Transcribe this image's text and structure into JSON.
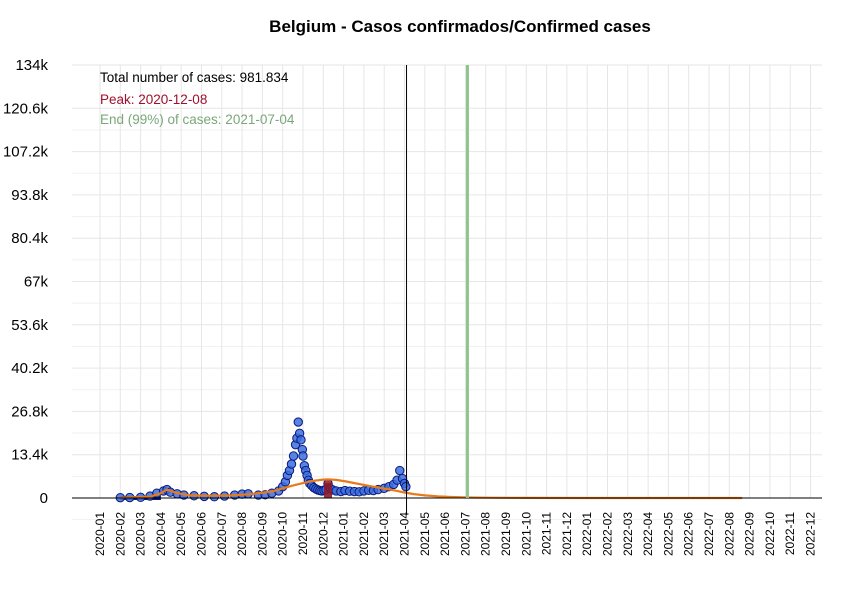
{
  "chart_data": {
    "type": "scatter",
    "title": "Belgium - Casos confirmados/Confirmed cases",
    "xlabel": "",
    "ylabel": "",
    "ylim": [
      0,
      134000
    ],
    "y_ticks": [
      "0",
      "13.4k",
      "26.8k",
      "40.2k",
      "53.6k",
      "67k",
      "80.4k",
      "93.8k",
      "107.2k",
      "120.6k",
      "134k"
    ],
    "x_ticks": [
      "2020-01",
      "2020-02",
      "2020-03",
      "2020-04",
      "2020-05",
      "2020-06",
      "2020-07",
      "2020-08",
      "2020-09",
      "2020-10",
      "2020-11",
      "2020-12",
      "2021-01",
      "2021-02",
      "2021-03",
      "2021-04",
      "2021-05",
      "2021-06",
      "2021-07",
      "2021-08",
      "2021-09",
      "2021-10",
      "2021-11",
      "2021-12",
      "2022-01",
      "2022-02",
      "2022-03",
      "2022-04",
      "2022-05",
      "2022-06",
      "2022-07",
      "2022-08",
      "2022-09",
      "2022-10",
      "2022-11",
      "2022-12"
    ],
    "annotations": {
      "total": "Total number of cases: 981.834",
      "peak": "Peak: 2020-12-08",
      "end": "End (99%) of cases: 2021-07-04"
    },
    "series": [
      {
        "kind": "observed-points",
        "x": [
          "2020-02-01",
          "2020-02-15",
          "2020-03-01",
          "2020-03-15",
          "2020-03-25",
          "2020-04-05",
          "2020-04-10",
          "2020-04-15",
          "2020-04-25",
          "2020-05-05",
          "2020-05-20",
          "2020-06-05",
          "2020-06-20",
          "2020-07-05",
          "2020-07-20",
          "2020-08-01",
          "2020-08-10",
          "2020-08-25",
          "2020-09-05",
          "2020-09-15",
          "2020-09-25",
          "2020-10-01",
          "2020-10-05",
          "2020-10-08",
          "2020-10-11",
          "2020-10-14",
          "2020-10-17",
          "2020-10-20",
          "2020-10-22",
          "2020-10-24",
          "2020-10-26",
          "2020-10-28",
          "2020-10-30",
          "2020-11-01",
          "2020-11-03",
          "2020-11-05",
          "2020-11-07",
          "2020-11-09",
          "2020-11-11",
          "2020-11-14",
          "2020-11-17",
          "2020-11-20",
          "2020-11-23",
          "2020-11-26",
          "2020-11-29",
          "2020-12-02",
          "2020-12-05",
          "2020-12-08",
          "2020-12-11",
          "2020-12-15",
          "2020-12-20",
          "2020-12-27",
          "2021-01-03",
          "2021-01-10",
          "2021-01-17",
          "2021-01-24",
          "2021-02-01",
          "2021-02-08",
          "2021-02-15",
          "2021-02-22",
          "2021-03-01",
          "2021-03-08",
          "2021-03-15",
          "2021-03-20",
          "2021-03-24",
          "2021-03-28",
          "2021-04-01",
          "2021-04-03"
        ],
        "values": [
          100,
          150,
          200,
          600,
          1500,
          2200,
          2600,
          1800,
          1300,
          900,
          700,
          500,
          400,
          600,
          900,
          1200,
          1300,
          900,
          1000,
          1500,
          2200,
          3500,
          5000,
          7000,
          8500,
          10500,
          13000,
          16500,
          18500,
          23500,
          20000,
          18000,
          15000,
          13000,
          10000,
          8500,
          7000,
          5500,
          4500,
          3800,
          3200,
          2800,
          2500,
          2300,
          2200,
          2400,
          2600,
          4500,
          3000,
          2500,
          2200,
          2000,
          2300,
          2100,
          2000,
          1900,
          2200,
          2400,
          2300,
          2600,
          3000,
          3500,
          4200,
          5500,
          8500,
          6000,
          4500,
          3500
        ]
      },
      {
        "kind": "fitted-curve",
        "x": [
          "2020-02-01",
          "2020-03-15",
          "2020-04-01",
          "2020-04-10",
          "2020-04-25",
          "2020-05-15",
          "2020-06-15",
          "2020-07-15",
          "2020-08-15",
          "2020-09-15",
          "2020-10-01",
          "2020-10-15",
          "2020-11-01",
          "2020-11-15",
          "2020-12-01",
          "2020-12-08",
          "2020-12-20",
          "2021-01-05",
          "2021-01-20",
          "2021-02-05",
          "2021-02-20",
          "2021-03-05",
          "2021-03-20",
          "2021-04-01",
          "2021-04-15",
          "2021-05-01",
          "2021-05-20",
          "2021-06-10",
          "2021-07-04",
          "2021-08-01",
          "2021-10-01",
          "2022-01-01",
          "2022-05-01",
          "2022-08-20"
        ],
        "values": [
          100,
          400,
          1500,
          2600,
          1500,
          800,
          700,
          800,
          1200,
          2000,
          3000,
          3800,
          4600,
          5300,
          5700,
          5800,
          5600,
          5100,
          4500,
          3900,
          3300,
          2800,
          2200,
          1700,
          1200,
          800,
          500,
          300,
          150,
          80,
          30,
          10,
          5,
          0
        ]
      }
    ],
    "markers": {
      "current_date": "2021-04-04",
      "end_date": "2021-07-04",
      "peak_date": "2020-12-08"
    },
    "colors": {
      "points": "#3b6fe0",
      "points_edge": "#0b1a7a",
      "peak": "#8b1a2b",
      "curve": "#e87a1a",
      "end_line": "#8fc48f",
      "total_text": "#000000",
      "peak_text": "#a0102a",
      "end_text": "#7aa77a",
      "grid": "#e6e6e6"
    },
    "grid": true
  }
}
